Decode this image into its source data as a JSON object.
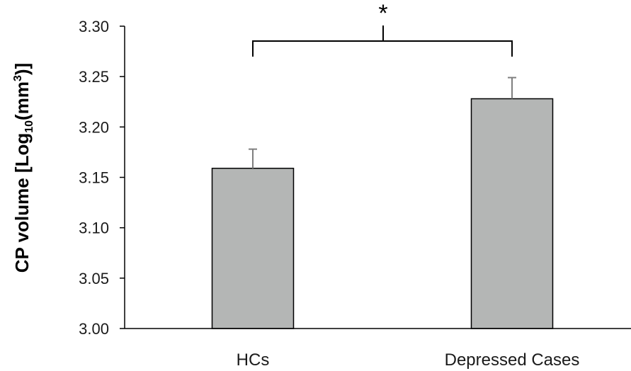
{
  "chart_data": {
    "type": "bar",
    "categories": [
      "HCs",
      "Depressed Cases"
    ],
    "values": [
      3.159,
      3.228
    ],
    "error_upper": [
      0.019,
      0.021
    ],
    "ylabel_main": "CP volume [Log",
    "ylabel_sub": "10",
    "ylabel_paren": "(mm",
    "ylabel_sup": "3",
    "ylabel_end": ")]",
    "ylim": [
      3.0,
      3.3
    ],
    "yticks": [
      3.0,
      3.05,
      3.1,
      3.15,
      3.2,
      3.25,
      3.3
    ],
    "ytick_labels": [
      "3.00",
      "3.05",
      "3.10",
      "3.15",
      "3.20",
      "3.25",
      "3.30"
    ],
    "significance": "*",
    "grid": false,
    "legend": "none",
    "colors": {
      "bar_fill": "#b4b6b5",
      "bar_stroke": "#000000",
      "error_bar": "#7f7f7f",
      "axis": "#000000"
    }
  }
}
